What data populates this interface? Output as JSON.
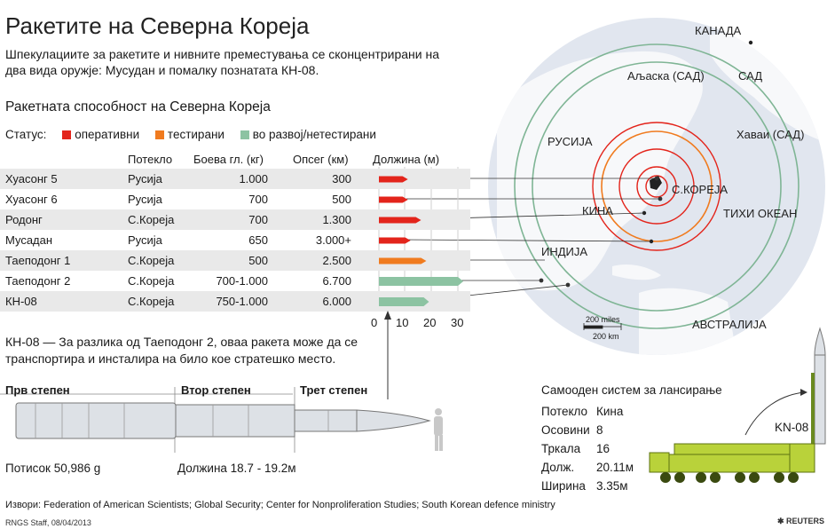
{
  "title": "Ракетите на Северна Кореја",
  "subtitle": "Шпекулациите за ракетите и нивните преместувања се сконцентрирани на два вида оружје: Мусудан и помалку познатата КН-08.",
  "section_title": "Ракетната способност на Северна Кореја",
  "status": {
    "label": "Статус:",
    "items": [
      {
        "label": "оперативни",
        "color": "#e3241b"
      },
      {
        "label": "тестирани",
        "color": "#f07b1f"
      },
      {
        "label": "во развој/нетестирани",
        "color": "#8cc3a2"
      }
    ]
  },
  "table": {
    "headers": {
      "origin": "Потекло",
      "warhead": "Боева гл. (кг)",
      "range": "Опсег (км)",
      "length": "Должина (м)"
    },
    "rows": [
      {
        "name": "Хуасонг 5",
        "origin": "Русија",
        "warhead": "1.000",
        "range": "300",
        "length_m": 11,
        "status": "operational"
      },
      {
        "name": "Хуасонг 6",
        "origin": "Русија",
        "warhead": "700",
        "range": "500",
        "length_m": 11,
        "status": "operational"
      },
      {
        "name": "Родонг",
        "origin": "С.Кореја",
        "warhead": "700",
        "range": "1.300",
        "length_m": 16,
        "status": "operational"
      },
      {
        "name": "Мусадан",
        "origin": "Русија",
        "warhead": "650",
        "range": "3.000+",
        "length_m": 12,
        "status": "operational"
      },
      {
        "name": "Таеподонг 1",
        "origin": "С.Кореја",
        "warhead": "500",
        "range": "2.500",
        "length_m": 18,
        "status": "tested"
      },
      {
        "name": "Таеподонг 2",
        "origin": "С.Кореја",
        "warhead": "700-1.000",
        "range": "6.700",
        "length_m": 32,
        "status": "development"
      },
      {
        "name": "КН-08",
        "origin": "С.Кореја",
        "warhead": "750-1.000",
        "range": "6.000",
        "length_m": 19,
        "status": "development"
      }
    ],
    "length_ticks": [
      "0",
      "10",
      "20",
      "30"
    ]
  },
  "kn08": {
    "description": "КН-08 — За разлика од Таеподонг 2, оваа ракета може да се транспортира и инсталира на било кое стратешко место.",
    "stages": [
      "Прв степен",
      "Втор степен",
      "Трет степен"
    ],
    "thrust": "Потисок 50,986 g",
    "length": "Должина 18.7 - 19.2м"
  },
  "launcher": {
    "title": "Самооден систем за лансирање",
    "specs": [
      {
        "label": "Потекло",
        "value": "Кина"
      },
      {
        "label": "Осовини",
        "value": "8"
      },
      {
        "label": "Тркала",
        "value": "16"
      },
      {
        "label": "Долж.",
        "value": "20.11м"
      },
      {
        "label": "Ширина",
        "value": "3.35м"
      }
    ],
    "vehicle_label": "KN-08"
  },
  "map": {
    "labels": {
      "canada": "КАНАДА",
      "usa": "САД",
      "alaska": "Аљаска (САД)",
      "hawaii": "Хаваи (САД)",
      "russia": "РУСИЈА",
      "nkorea": "С.КОРЕЈА",
      "china": "КИНА",
      "pacific": "ТИХИ ОКЕАН",
      "india": "ИНДИЈА",
      "australia": "АВСТРАЛИЈА"
    },
    "scale_miles": "200 miles",
    "scale_km": "200 km"
  },
  "sources": "Извори: Federation of American Scientists; Global Security; Center for Nonproliferation Studies; South Korean defence ministry",
  "credit": "RNGS Staff, 08/04/2013",
  "brand": "REUTERS"
}
